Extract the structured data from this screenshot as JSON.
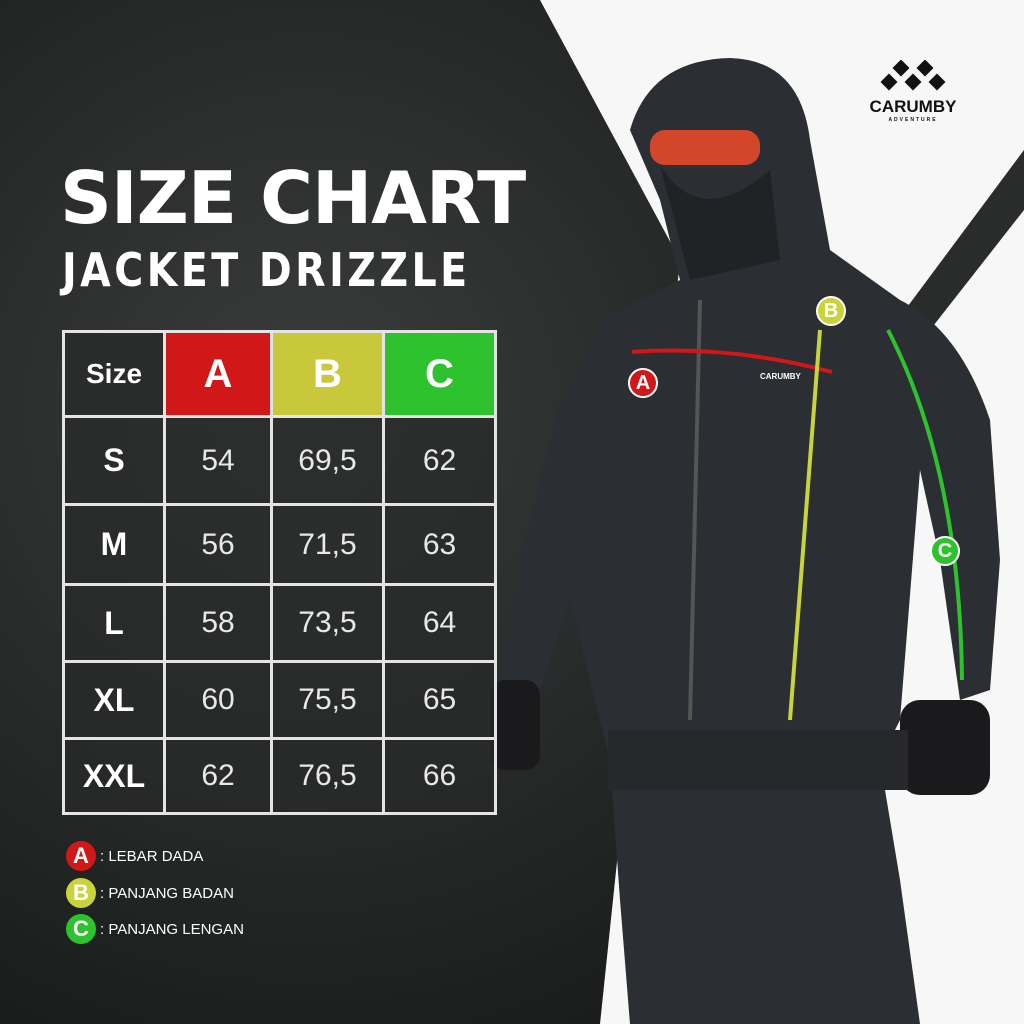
{
  "title": "SIZE CHART",
  "subtitle": "JACKET DRIZZLE",
  "brand": {
    "name": "CARUMBY",
    "tagline": "ADVENTURE",
    "logo_icon": "diamond-cluster"
  },
  "table": {
    "headers": [
      "Size",
      "A",
      "B",
      "C"
    ],
    "header_colors": [
      "#2a2c2c",
      "#d01818",
      "#c8c83a",
      "#2ec22e"
    ],
    "rows": [
      [
        "S",
        "54",
        "69,5",
        "62"
      ],
      [
        "M",
        "56",
        "71,5",
        "63"
      ],
      [
        "L",
        "58",
        "73,5",
        "64"
      ],
      [
        "XL",
        "60",
        "75,5",
        "65"
      ],
      [
        "XXL",
        "62",
        "76,5",
        "66"
      ]
    ]
  },
  "legend": [
    {
      "letter": "A",
      "label": ": LEBAR DADA",
      "color": "#d01818"
    },
    {
      "letter": "B",
      "label": ": PANJANG BADAN",
      "color": "#c8d43a"
    },
    {
      "letter": "C",
      "label": ": PANJANG LENGAN",
      "color": "#2ec22e"
    }
  ],
  "annotations": [
    "A",
    "B",
    "C"
  ],
  "jacket_logo": "CARUMBY"
}
